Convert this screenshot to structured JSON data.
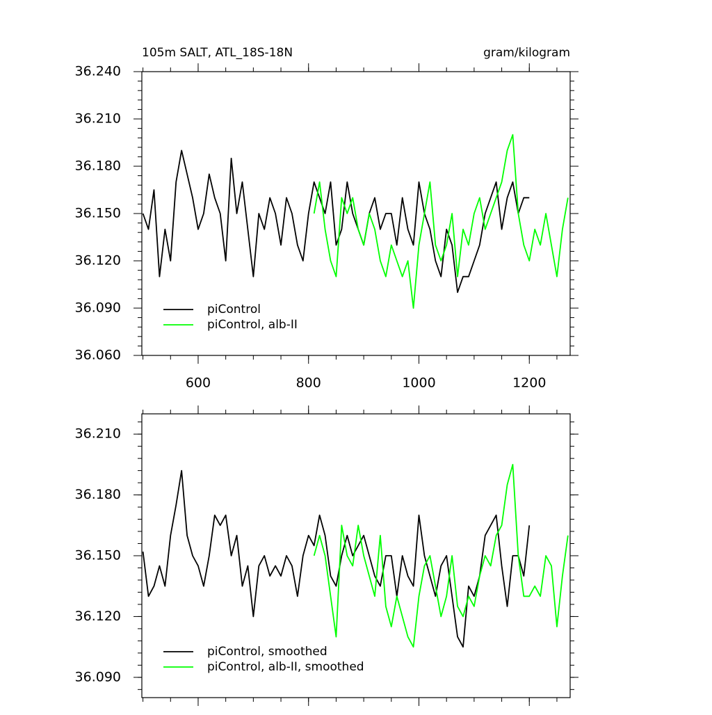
{
  "chart_data": [
    {
      "type": "line",
      "title": "105m SALT, ATL_18S-18N",
      "units": "gram/kilogram",
      "xlim": [
        498,
        1274
      ],
      "xticks": [
        600,
        800,
        1000,
        1200
      ],
      "show_xtick_labels": true,
      "ylim": [
        36.06,
        36.24
      ],
      "yticks": [
        {
          "value": 36.06,
          "label": "36.060"
        },
        {
          "value": 36.09,
          "label": "36.090"
        },
        {
          "value": 36.12,
          "label": "36.120"
        },
        {
          "value": 36.15,
          "label": "36.150"
        },
        {
          "value": 36.18,
          "label": "36.180"
        },
        {
          "value": 36.21,
          "label": "36.210"
        },
        {
          "value": 36.24,
          "label": "36.240"
        }
      ],
      "legend": "lower left",
      "series": [
        {
          "name": "piControl",
          "color": "#000000",
          "x": [
            500,
            510,
            520,
            530,
            540,
            550,
            560,
            570,
            580,
            590,
            600,
            610,
            620,
            630,
            640,
            650,
            660,
            670,
            680,
            690,
            700,
            710,
            720,
            730,
            740,
            750,
            760,
            770,
            780,
            790,
            800,
            810,
            820,
            830,
            840,
            850,
            860,
            870,
            880,
            890,
            900,
            910,
            920,
            930,
            940,
            950,
            960,
            970,
            980,
            990,
            1000,
            1010,
            1020,
            1030,
            1040,
            1050,
            1060,
            1070,
            1080,
            1090,
            1100,
            1110,
            1120,
            1130,
            1140,
            1150,
            1160,
            1170,
            1180,
            1190,
            1200
          ],
          "values": [
            36.15,
            36.14,
            36.165,
            36.11,
            36.14,
            36.12,
            36.17,
            36.19,
            36.175,
            36.16,
            36.14,
            36.15,
            36.175,
            36.16,
            36.15,
            36.12,
            36.185,
            36.15,
            36.17,
            36.14,
            36.11,
            36.15,
            36.14,
            36.16,
            36.15,
            36.13,
            36.16,
            36.15,
            36.13,
            36.12,
            36.15,
            36.17,
            36.16,
            36.15,
            36.17,
            36.13,
            36.14,
            36.17,
            36.15,
            36.14,
            36.13,
            36.15,
            36.16,
            36.14,
            36.15,
            36.15,
            36.13,
            36.16,
            36.14,
            36.13,
            36.17,
            36.15,
            36.14,
            36.12,
            36.11,
            36.14,
            36.13,
            36.1,
            36.11,
            36.11,
            36.12,
            36.13,
            36.15,
            36.16,
            36.17,
            36.14,
            36.16,
            36.17,
            36.15,
            36.16,
            36.16
          ]
        },
        {
          "name": "piControl, alb-II",
          "color": "#00ff00",
          "x": [
            810,
            820,
            830,
            840,
            850,
            860,
            870,
            880,
            890,
            900,
            910,
            920,
            930,
            940,
            950,
            960,
            970,
            980,
            990,
            1000,
            1010,
            1020,
            1030,
            1040,
            1050,
            1060,
            1070,
            1080,
            1090,
            1100,
            1110,
            1120,
            1130,
            1140,
            1150,
            1160,
            1170,
            1180,
            1190,
            1200,
            1210,
            1220,
            1230,
            1240,
            1250,
            1260,
            1270
          ],
          "values": [
            36.15,
            36.17,
            36.14,
            36.12,
            36.11,
            36.16,
            36.15,
            36.16,
            36.14,
            36.13,
            36.15,
            36.14,
            36.12,
            36.11,
            36.13,
            36.12,
            36.11,
            36.12,
            36.09,
            36.13,
            36.15,
            36.17,
            36.13,
            36.12,
            36.13,
            36.15,
            36.11,
            36.14,
            36.13,
            36.15,
            36.16,
            36.14,
            36.15,
            36.16,
            36.17,
            36.19,
            36.2,
            36.15,
            36.13,
            36.12,
            36.14,
            36.13,
            36.15,
            36.13,
            36.11,
            36.14,
            36.16
          ]
        }
      ]
    },
    {
      "type": "line",
      "xlim": [
        498,
        1274
      ],
      "xticks": [
        600,
        800,
        1000,
        1200
      ],
      "show_xtick_labels": false,
      "ylim": [
        36.08,
        36.22
      ],
      "yticks": [
        {
          "value": 36.09,
          "label": "36.090"
        },
        {
          "value": 36.12,
          "label": "36.120"
        },
        {
          "value": 36.15,
          "label": "36.150"
        },
        {
          "value": 36.18,
          "label": "36.180"
        },
        {
          "value": 36.21,
          "label": "36.210"
        }
      ],
      "legend": "lower left",
      "series": [
        {
          "name": "piControl, smoothed",
          "color": "#000000",
          "x": [
            500,
            510,
            520,
            530,
            540,
            550,
            560,
            570,
            580,
            590,
            600,
            610,
            620,
            630,
            640,
            650,
            660,
            670,
            680,
            690,
            700,
            710,
            720,
            730,
            740,
            750,
            760,
            770,
            780,
            790,
            800,
            810,
            820,
            830,
            840,
            850,
            860,
            870,
            880,
            890,
            900,
            910,
            920,
            930,
            940,
            950,
            960,
            970,
            980,
            990,
            1000,
            1010,
            1020,
            1030,
            1040,
            1050,
            1060,
            1070,
            1080,
            1090,
            1100,
            1110,
            1120,
            1130,
            1140,
            1150,
            1160,
            1170,
            1180,
            1190,
            1200
          ],
          "values": [
            36.152,
            36.13,
            36.135,
            36.145,
            36.135,
            36.16,
            36.175,
            36.192,
            36.16,
            36.15,
            36.145,
            36.135,
            36.15,
            36.17,
            36.165,
            36.17,
            36.15,
            36.16,
            36.135,
            36.145,
            36.12,
            36.145,
            36.15,
            36.14,
            36.145,
            36.14,
            36.15,
            36.145,
            36.13,
            36.15,
            36.16,
            36.155,
            36.17,
            36.16,
            36.14,
            36.135,
            36.15,
            36.16,
            36.15,
            36.155,
            36.16,
            36.15,
            36.14,
            36.135,
            36.15,
            36.15,
            36.13,
            36.15,
            36.14,
            36.135,
            36.17,
            36.15,
            36.14,
            36.13,
            36.145,
            36.15,
            36.13,
            36.11,
            36.105,
            36.135,
            36.13,
            36.14,
            36.16,
            36.165,
            36.17,
            36.145,
            36.125,
            36.15,
            36.15,
            36.14,
            36.165
          ]
        },
        {
          "name": "piControl, alb-II, smoothed",
          "color": "#00ff00",
          "x": [
            810,
            820,
            830,
            840,
            850,
            860,
            870,
            880,
            890,
            900,
            910,
            920,
            930,
            940,
            950,
            960,
            970,
            980,
            990,
            1000,
            1010,
            1020,
            1030,
            1040,
            1050,
            1060,
            1070,
            1080,
            1090,
            1100,
            1110,
            1120,
            1130,
            1140,
            1150,
            1160,
            1170,
            1180,
            1190,
            1200,
            1210,
            1220,
            1230,
            1240,
            1250,
            1260,
            1270
          ],
          "values": [
            36.15,
            36.16,
            36.15,
            36.13,
            36.11,
            36.165,
            36.15,
            36.145,
            36.165,
            36.15,
            36.14,
            36.13,
            36.16,
            36.125,
            36.115,
            36.13,
            36.12,
            36.11,
            36.105,
            36.13,
            36.145,
            36.15,
            36.135,
            36.12,
            36.13,
            36.15,
            36.125,
            36.12,
            36.13,
            36.125,
            36.14,
            36.15,
            36.145,
            36.16,
            36.165,
            36.185,
            36.195,
            36.15,
            36.13,
            36.13,
            36.135,
            36.13,
            36.15,
            36.145,
            36.115,
            36.14,
            36.16
          ]
        }
      ]
    }
  ]
}
